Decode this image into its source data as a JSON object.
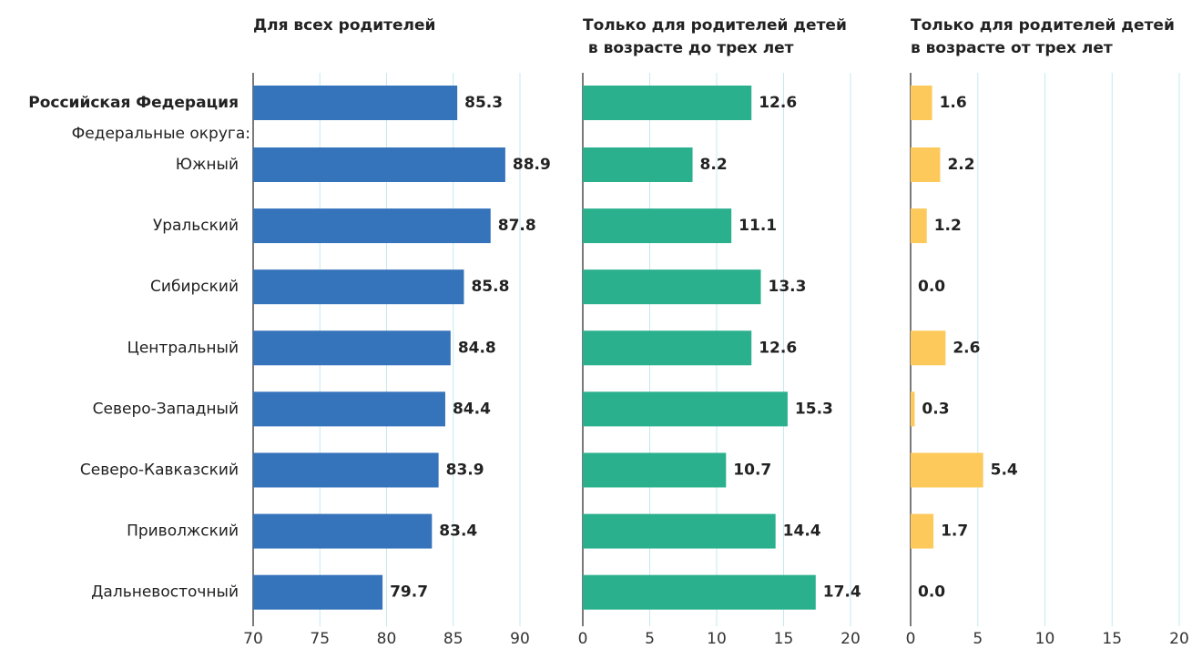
{
  "chart_data": [
    {
      "type": "bar",
      "title_lines": [
        "Для всех родителей"
      ],
      "categories": [
        "Российская Федерация",
        "Южный",
        "Уральский",
        "Сибирский",
        "Центральный",
        "Северо-Западный",
        "Северо-Кавказский",
        "Приволжский",
        "Дальневосточный"
      ],
      "group_label": "Федеральные округа:",
      "values": [
        85.3,
        88.9,
        87.8,
        85.8,
        84.8,
        84.4,
        83.9,
        83.4,
        79.7
      ],
      "color": "#3573bb",
      "xlim": [
        70,
        90
      ],
      "xticks": [
        70,
        75,
        80,
        85,
        90
      ],
      "grid": true
    },
    {
      "type": "bar",
      "title_lines": [
        "Только для родителей детей",
        " в возрасте до трех лет"
      ],
      "values": [
        12.6,
        8.2,
        11.1,
        13.3,
        12.6,
        15.3,
        10.7,
        14.4,
        17.4
      ],
      "color": "#2bb08e",
      "xlim": [
        0,
        20
      ],
      "xticks": [
        0,
        5,
        10,
        15,
        20
      ],
      "grid": true
    },
    {
      "type": "bar",
      "title_lines": [
        "Только для родителей детей",
        "в возрасте от трех лет"
      ],
      "values": [
        1.6,
        2.2,
        1.2,
        0,
        2.6,
        0.3,
        5.4,
        1.7,
        0
      ],
      "value_labels": [
        "1.6",
        "2.2",
        "1.2",
        "0.0",
        "2.6",
        "0.3",
        "5.4",
        "1.7",
        "0.0"
      ],
      "color": "#fdc95a",
      "xlim": [
        0,
        20
      ],
      "xticks": [
        0,
        5,
        10,
        15,
        20
      ],
      "grid": true
    }
  ]
}
